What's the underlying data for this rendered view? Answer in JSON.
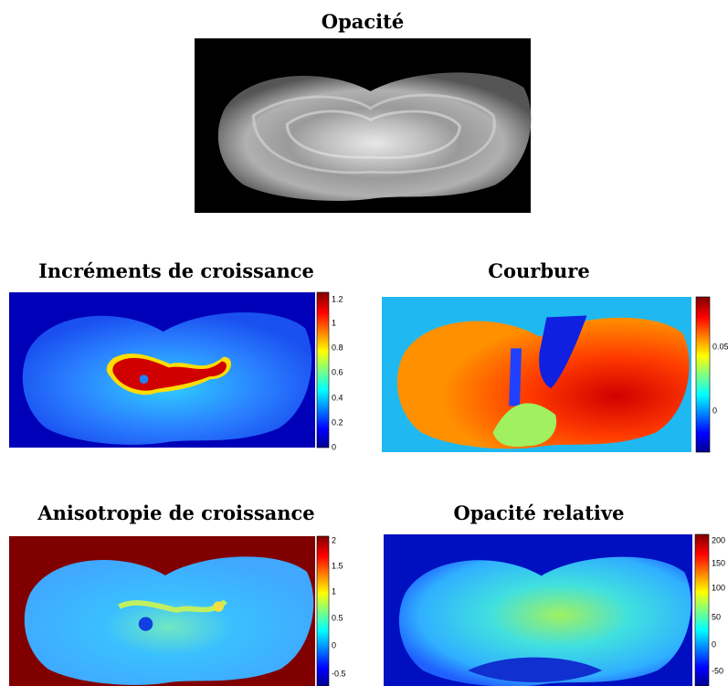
{
  "panels": [
    {
      "title": "Opacité",
      "colorbar": []
    },
    {
      "title": "Incréments de croissance",
      "colorbar": [
        "1.2",
        "1",
        "0.8",
        "0.6",
        "0.4",
        "0.2",
        "0"
      ]
    },
    {
      "title": "Courbure",
      "colorbar": [
        "0.05",
        "0"
      ]
    },
    {
      "title": "Anisotropie de croissance",
      "colorbar": [
        "2",
        "1.5",
        "1",
        "0.5",
        "0",
        "-0.5"
      ]
    },
    {
      "title": "Opacité relative",
      "colorbar": [
        "200",
        "150",
        "100",
        "50",
        "0",
        "-50"
      ]
    }
  ]
}
